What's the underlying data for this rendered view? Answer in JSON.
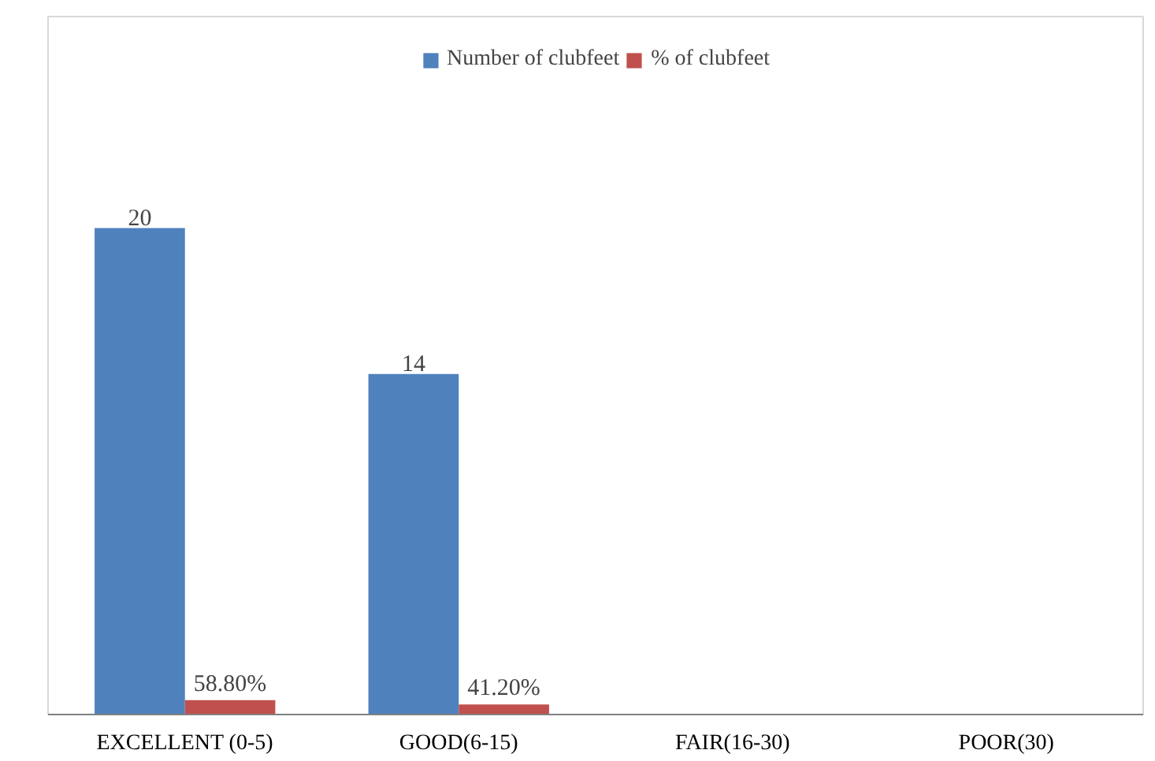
{
  "chart_data": {
    "type": "bar",
    "categories": [
      "EXCELLENT (0-5)",
      "GOOD(6-15)",
      "FAIR(16-30)",
      "POOR(30)"
    ],
    "series": [
      {
        "name": "Number of clubfeet",
        "color": "#4f81bd",
        "values": [
          20,
          14,
          null,
          null
        ],
        "value_labels": [
          "20",
          "14",
          null,
          null
        ]
      },
      {
        "name": "% of clubfeet",
        "color": "#c0504d",
        "values": [
          0.588,
          0.412,
          null,
          null
        ],
        "value_labels": [
          "58.80%",
          "41.20%",
          null,
          null
        ]
      }
    ],
    "ylim": [
      0,
      28.7
    ],
    "grid": false,
    "legend": "top"
  }
}
